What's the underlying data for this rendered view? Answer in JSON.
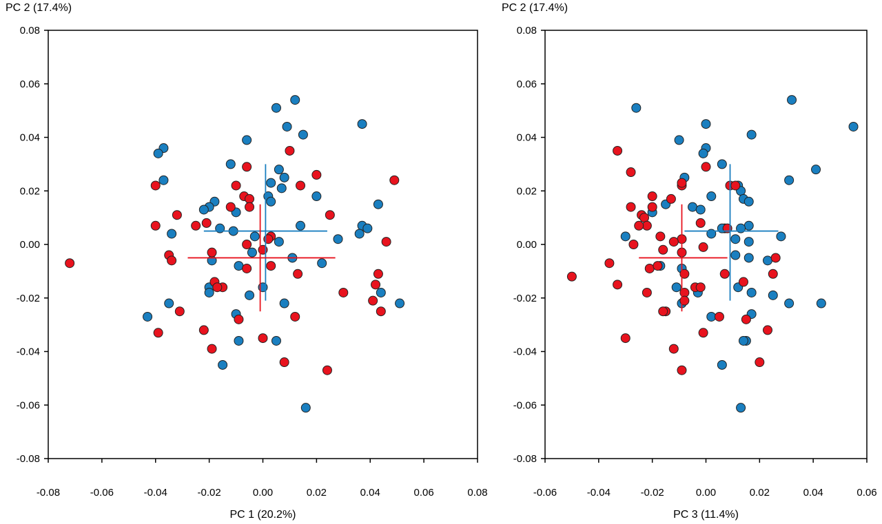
{
  "colors": {
    "blue": "#1a7fc0",
    "red": "#e8131e",
    "outline": "#222222"
  },
  "chart_data": [
    {
      "type": "scatter",
      "xlabel": "PC 1 (20.2%)",
      "ylabel": "PC 2 (17.4%)",
      "xlim": [
        -0.08,
        0.08
      ],
      "ylim": [
        -0.08,
        0.08
      ],
      "xticks": [
        "-0.08",
        "-0.06",
        "-0.04",
        "-0.02",
        "0.00",
        "0.02",
        "0.04",
        "0.06",
        "0.08"
      ],
      "yticks": [
        "0.08",
        "0.06",
        "0.04",
        "0.02",
        "0.00",
        "-0.02",
        "-0.04",
        "-0.06",
        "-0.08"
      ],
      "series": [
        {
          "color": "blue",
          "points": [
            [
              0.005,
              0.051
            ],
            [
              0.012,
              0.054
            ],
            [
              0.015,
              0.041
            ],
            [
              0.009,
              0.044
            ],
            [
              0.037,
              0.045
            ],
            [
              -0.006,
              0.039
            ],
            [
              -0.037,
              0.036
            ],
            [
              -0.039,
              0.034
            ],
            [
              -0.012,
              0.03
            ],
            [
              0.006,
              0.028
            ],
            [
              -0.037,
              0.024
            ],
            [
              0.008,
              0.025
            ],
            [
              0.003,
              0.023
            ],
            [
              0.007,
              0.021
            ],
            [
              0.002,
              0.018
            ],
            [
              0.003,
              0.016
            ],
            [
              0.02,
              0.018
            ],
            [
              -0.018,
              0.016
            ],
            [
              -0.02,
              0.014
            ],
            [
              -0.022,
              0.013
            ],
            [
              -0.01,
              0.012
            ],
            [
              0.043,
              0.015
            ],
            [
              0.014,
              0.007
            ],
            [
              0.037,
              0.007
            ],
            [
              0.039,
              0.006
            ],
            [
              -0.016,
              0.006
            ],
            [
              -0.011,
              0.005
            ],
            [
              -0.034,
              0.004
            ],
            [
              0.036,
              0.004
            ],
            [
              0.028,
              0.002
            ],
            [
              -0.003,
              0.003
            ],
            [
              0.006,
              0.001
            ],
            [
              -0.004,
              -0.003
            ],
            [
              -0.019,
              -0.006
            ],
            [
              0.011,
              -0.005
            ],
            [
              0.022,
              -0.007
            ],
            [
              -0.009,
              -0.008
            ],
            [
              -0.02,
              -0.016
            ],
            [
              -0.02,
              -0.018
            ],
            [
              0.0,
              -0.016
            ],
            [
              -0.005,
              -0.019
            ],
            [
              0.044,
              -0.018
            ],
            [
              -0.035,
              -0.022
            ],
            [
              0.008,
              -0.022
            ],
            [
              0.051,
              -0.022
            ],
            [
              -0.01,
              -0.026
            ],
            [
              -0.043,
              -0.027
            ],
            [
              -0.009,
              -0.036
            ],
            [
              0.005,
              -0.036
            ],
            [
              -0.015,
              -0.045
            ],
            [
              0.016,
              -0.061
            ]
          ],
          "crosshair": {
            "center": [
              0.001,
              0.005
            ],
            "xrange": [
              -0.022,
              0.024
            ],
            "yrange": [
              -0.021,
              0.03
            ]
          }
        },
        {
          "color": "red",
          "points": [
            [
              0.049,
              0.024
            ],
            [
              0.01,
              0.035
            ],
            [
              -0.006,
              0.029
            ],
            [
              0.02,
              0.026
            ],
            [
              -0.04,
              0.022
            ],
            [
              -0.01,
              0.022
            ],
            [
              0.014,
              0.022
            ],
            [
              -0.007,
              0.018
            ],
            [
              -0.005,
              0.017
            ],
            [
              -0.005,
              0.014
            ],
            [
              -0.012,
              0.014
            ],
            [
              -0.032,
              0.011
            ],
            [
              0.025,
              0.011
            ],
            [
              -0.021,
              0.008
            ],
            [
              -0.04,
              0.007
            ],
            [
              -0.025,
              0.007
            ],
            [
              0.003,
              0.003
            ],
            [
              0.002,
              0.002
            ],
            [
              0.046,
              0.001
            ],
            [
              -0.006,
              -0.0
            ],
            [
              0.0,
              -0.002
            ],
            [
              -0.019,
              -0.003
            ],
            [
              -0.035,
              -0.004
            ],
            [
              -0.034,
              -0.006
            ],
            [
              -0.072,
              -0.007
            ],
            [
              0.003,
              -0.008
            ],
            [
              -0.006,
              -0.009
            ],
            [
              0.043,
              -0.011
            ],
            [
              0.013,
              -0.011
            ],
            [
              0.042,
              -0.015
            ],
            [
              -0.018,
              -0.014
            ],
            [
              -0.015,
              -0.016
            ],
            [
              -0.017,
              -0.016
            ],
            [
              0.03,
              -0.018
            ],
            [
              0.041,
              -0.021
            ],
            [
              0.044,
              -0.025
            ],
            [
              -0.031,
              -0.025
            ],
            [
              0.012,
              -0.027
            ],
            [
              -0.009,
              -0.028
            ],
            [
              -0.022,
              -0.032
            ],
            [
              -0.039,
              -0.033
            ],
            [
              0.0,
              -0.035
            ],
            [
              -0.019,
              -0.039
            ],
            [
              0.008,
              -0.044
            ],
            [
              0.024,
              -0.047
            ]
          ],
          "crosshair": {
            "center": [
              -0.001,
              -0.005
            ],
            "xrange": [
              -0.028,
              0.027
            ],
            "yrange": [
              -0.025,
              0.015
            ]
          }
        }
      ]
    },
    {
      "type": "scatter",
      "xlabel": "PC 3 (11.4%)",
      "ylabel": "PC 2 (17.4%)",
      "xlim": [
        -0.06,
        0.06
      ],
      "ylim": [
        -0.08,
        0.08
      ],
      "xticks": [
        "-0.06",
        "-0.04",
        "-0.02",
        "0.00",
        "0.02",
        "0.04",
        "0.06"
      ],
      "yticks": [
        "0.08",
        "0.06",
        "0.04",
        "0.02",
        "0.00",
        "-0.02",
        "-0.04",
        "-0.06",
        "-0.08"
      ],
      "series": [
        {
          "color": "blue",
          "points": [
            [
              -0.026,
              0.051
            ],
            [
              0.032,
              0.054
            ],
            [
              0.055,
              0.044
            ],
            [
              0.0,
              0.045
            ],
            [
              0.017,
              0.041
            ],
            [
              -0.01,
              0.039
            ],
            [
              0.0,
              0.036
            ],
            [
              -0.001,
              0.034
            ],
            [
              0.006,
              0.03
            ],
            [
              0.041,
              0.028
            ],
            [
              -0.008,
              0.025
            ],
            [
              0.031,
              0.024
            ],
            [
              0.012,
              0.022
            ],
            [
              0.013,
              0.02
            ],
            [
              0.014,
              0.017
            ],
            [
              0.016,
              0.016
            ],
            [
              0.002,
              0.018
            ],
            [
              -0.015,
              0.015
            ],
            [
              -0.005,
              0.014
            ],
            [
              -0.002,
              0.013
            ],
            [
              -0.02,
              0.012
            ],
            [
              0.016,
              0.007
            ],
            [
              0.013,
              0.006
            ],
            [
              0.007,
              0.006
            ],
            [
              0.006,
              0.006
            ],
            [
              0.002,
              0.004
            ],
            [
              0.028,
              0.003
            ],
            [
              -0.03,
              0.003
            ],
            [
              0.011,
              0.002
            ],
            [
              0.016,
              0.001
            ],
            [
              0.011,
              -0.004
            ],
            [
              0.016,
              -0.005
            ],
            [
              0.023,
              -0.006
            ],
            [
              -0.017,
              -0.008
            ],
            [
              -0.009,
              -0.009
            ],
            [
              0.012,
              -0.016
            ],
            [
              -0.011,
              -0.016
            ],
            [
              0.017,
              -0.018
            ],
            [
              -0.003,
              -0.018
            ],
            [
              0.025,
              -0.019
            ],
            [
              0.031,
              -0.022
            ],
            [
              -0.009,
              -0.022
            ],
            [
              0.043,
              -0.022
            ],
            [
              0.017,
              -0.026
            ],
            [
              0.002,
              -0.027
            ],
            [
              0.015,
              -0.036
            ],
            [
              0.014,
              -0.036
            ],
            [
              0.006,
              -0.045
            ],
            [
              0.013,
              -0.061
            ]
          ],
          "crosshair": {
            "center": [
              0.009,
              0.005
            ],
            "xrange": [
              -0.008,
              0.027
            ],
            "yrange": [
              -0.021,
              0.03
            ]
          }
        },
        {
          "color": "red",
          "points": [
            [
              -0.033,
              0.035
            ],
            [
              0.0,
              0.029
            ],
            [
              -0.028,
              0.027
            ],
            [
              0.009,
              0.022
            ],
            [
              0.011,
              0.022
            ],
            [
              -0.009,
              0.022
            ],
            [
              -0.009,
              0.023
            ],
            [
              -0.013,
              0.017
            ],
            [
              -0.02,
              0.018
            ],
            [
              -0.028,
              0.014
            ],
            [
              -0.02,
              0.014
            ],
            [
              -0.024,
              0.011
            ],
            [
              -0.023,
              0.01
            ],
            [
              -0.002,
              0.008
            ],
            [
              -0.022,
              0.007
            ],
            [
              -0.025,
              0.007
            ],
            [
              0.008,
              0.006
            ],
            [
              -0.009,
              0.002
            ],
            [
              -0.017,
              0.003
            ],
            [
              -0.016,
              -0.002
            ],
            [
              -0.012,
              0.001
            ],
            [
              -0.001,
              -0.001
            ],
            [
              -0.027,
              0.0
            ],
            [
              -0.009,
              -0.003
            ],
            [
              0.026,
              -0.005
            ],
            [
              -0.036,
              -0.007
            ],
            [
              -0.021,
              -0.009
            ],
            [
              -0.018,
              -0.008
            ],
            [
              -0.008,
              -0.011
            ],
            [
              0.007,
              -0.011
            ],
            [
              0.025,
              -0.011
            ],
            [
              -0.05,
              -0.012
            ],
            [
              -0.033,
              -0.015
            ],
            [
              0.014,
              -0.014
            ],
            [
              -0.004,
              -0.016
            ],
            [
              -0.002,
              -0.016
            ],
            [
              -0.008,
              -0.018
            ],
            [
              -0.022,
              -0.018
            ],
            [
              -0.008,
              -0.021
            ],
            [
              -0.015,
              -0.025
            ],
            [
              -0.016,
              -0.025
            ],
            [
              0.005,
              -0.027
            ],
            [
              0.015,
              -0.028
            ],
            [
              0.023,
              -0.032
            ],
            [
              -0.001,
              -0.033
            ],
            [
              -0.03,
              -0.035
            ],
            [
              -0.012,
              -0.039
            ],
            [
              0.02,
              -0.044
            ],
            [
              -0.009,
              -0.047
            ]
          ],
          "crosshair": {
            "center": [
              -0.009,
              -0.005
            ],
            "xrange": [
              -0.025,
              0.008
            ],
            "yrange": [
              -0.025,
              0.015
            ]
          }
        }
      ]
    }
  ]
}
